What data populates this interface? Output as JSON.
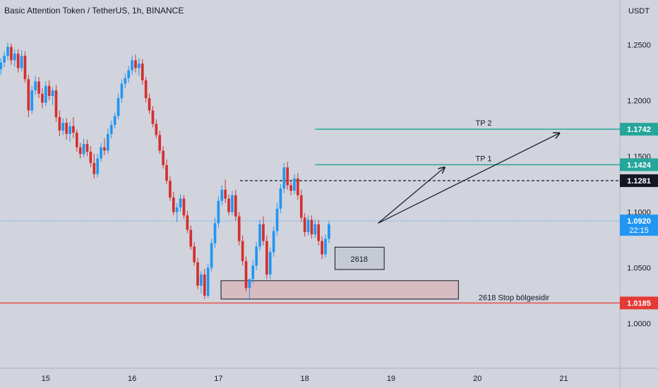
{
  "chart_data": {
    "type": "candlestick",
    "title": "Basic Attention Token / TetherUS, 1h, BINANCE",
    "currency": "USDT",
    "y_ticks": [
      1.0,
      1.05,
      1.1,
      1.15,
      1.2,
      1.25
    ],
    "y_tick_labels": [
      "1.0000",
      "1.0500",
      "1.1000",
      "1.1500",
      "1.2000",
      "1.2500"
    ],
    "ylim": [
      0.96,
      1.29
    ],
    "x_ticks": [
      15,
      16,
      17,
      18,
      19,
      20,
      21
    ],
    "x_tick_labels": [
      "15",
      "16",
      "17",
      "18",
      "19",
      "20",
      "21"
    ],
    "xlim": [
      14.47,
      21.65
    ],
    "colors": {
      "up": "#2196f3",
      "down": "#d32f2f",
      "tp": "#26a69a",
      "stop": "#e53935",
      "bg": "#d1d4dc",
      "zone": "#d7bcc2"
    },
    "candles": [
      [
        14.48,
        1.228,
        1.238,
        1.223,
        1.234
      ],
      [
        14.52,
        1.234,
        1.244,
        1.23,
        1.24
      ],
      [
        14.56,
        1.24,
        1.252,
        1.236,
        1.248
      ],
      [
        14.6,
        1.248,
        1.251,
        1.232,
        1.236
      ],
      [
        14.64,
        1.236,
        1.246,
        1.23,
        1.242
      ],
      [
        14.68,
        1.242,
        1.246,
        1.225,
        1.229
      ],
      [
        14.72,
        1.229,
        1.245,
        1.226,
        1.24
      ],
      [
        14.76,
        1.24,
        1.244,
        1.216,
        1.219
      ],
      [
        14.8,
        1.219,
        1.223,
        1.185,
        1.191
      ],
      [
        14.84,
        1.191,
        1.213,
        1.188,
        1.209
      ],
      [
        14.88,
        1.209,
        1.222,
        1.205,
        1.217
      ],
      [
        14.92,
        1.217,
        1.221,
        1.202,
        1.206
      ],
      [
        14.96,
        1.206,
        1.211,
        1.193,
        1.198
      ],
      [
        15.0,
        1.198,
        1.217,
        1.195,
        1.213
      ],
      [
        15.04,
        1.213,
        1.218,
        1.2,
        1.204
      ],
      [
        15.08,
        1.204,
        1.212,
        1.196,
        1.209
      ],
      [
        15.12,
        1.209,
        1.214,
        1.181,
        1.185
      ],
      [
        15.16,
        1.185,
        1.191,
        1.168,
        1.173
      ],
      [
        15.2,
        1.173,
        1.184,
        1.169,
        1.18
      ],
      [
        15.24,
        1.18,
        1.184,
        1.165,
        1.17
      ],
      [
        15.28,
        1.17,
        1.181,
        1.163,
        1.177
      ],
      [
        15.32,
        1.177,
        1.185,
        1.166,
        1.171
      ],
      [
        15.36,
        1.171,
        1.174,
        1.154,
        1.158
      ],
      [
        15.4,
        1.158,
        1.162,
        1.148,
        1.152
      ],
      [
        15.44,
        1.152,
        1.166,
        1.149,
        1.161
      ],
      [
        15.48,
        1.161,
        1.165,
        1.15,
        1.154
      ],
      [
        15.52,
        1.154,
        1.159,
        1.14,
        1.144
      ],
      [
        15.56,
        1.144,
        1.152,
        1.13,
        1.134
      ],
      [
        15.6,
        1.134,
        1.152,
        1.131,
        1.148
      ],
      [
        15.64,
        1.148,
        1.162,
        1.145,
        1.158
      ],
      [
        15.68,
        1.158,
        1.166,
        1.151,
        1.155
      ],
      [
        15.72,
        1.155,
        1.175,
        1.152,
        1.17
      ],
      [
        15.76,
        1.17,
        1.182,
        1.166,
        1.178
      ],
      [
        15.8,
        1.178,
        1.189,
        1.175,
        1.186
      ],
      [
        15.84,
        1.186,
        1.206,
        1.183,
        1.202
      ],
      [
        15.88,
        1.202,
        1.219,
        1.198,
        1.215
      ],
      [
        15.92,
        1.215,
        1.224,
        1.211,
        1.22
      ],
      [
        15.96,
        1.22,
        1.231,
        1.216,
        1.227
      ],
      [
        16.0,
        1.227,
        1.24,
        1.223,
        1.236
      ],
      [
        16.04,
        1.236,
        1.241,
        1.225,
        1.229
      ],
      [
        16.08,
        1.229,
        1.238,
        1.222,
        1.233
      ],
      [
        16.12,
        1.233,
        1.237,
        1.214,
        1.218
      ],
      [
        16.16,
        1.218,
        1.221,
        1.198,
        1.202
      ],
      [
        16.2,
        1.202,
        1.206,
        1.188,
        1.191
      ],
      [
        16.24,
        1.191,
        1.195,
        1.176,
        1.179
      ],
      [
        16.28,
        1.179,
        1.183,
        1.166,
        1.169
      ],
      [
        16.32,
        1.169,
        1.173,
        1.152,
        1.155
      ],
      [
        16.36,
        1.155,
        1.159,
        1.139,
        1.142
      ],
      [
        16.4,
        1.142,
        1.147,
        1.125,
        1.128
      ],
      [
        16.44,
        1.128,
        1.132,
        1.11,
        1.113
      ],
      [
        16.48,
        1.113,
        1.118,
        1.097,
        1.1
      ],
      [
        16.52,
        1.1,
        1.108,
        1.091,
        1.104
      ],
      [
        16.56,
        1.104,
        1.116,
        1.1,
        1.112
      ],
      [
        16.6,
        1.112,
        1.115,
        1.094,
        1.097
      ],
      [
        16.64,
        1.097,
        1.101,
        1.081,
        1.084
      ],
      [
        16.68,
        1.084,
        1.088,
        1.066,
        1.069
      ],
      [
        16.72,
        1.069,
        1.073,
        1.052,
        1.055
      ],
      [
        16.76,
        1.055,
        1.059,
        1.031,
        1.034
      ],
      [
        16.8,
        1.034,
        1.047,
        1.027,
        1.044
      ],
      [
        16.84,
        1.044,
        1.049,
        1.022,
        1.025
      ],
      [
        16.88,
        1.025,
        1.054,
        1.023,
        1.05
      ],
      [
        16.92,
        1.05,
        1.076,
        1.047,
        1.072
      ],
      [
        16.96,
        1.072,
        1.095,
        1.068,
        1.09
      ],
      [
        17.0,
        1.09,
        1.114,
        1.086,
        1.11
      ],
      [
        17.04,
        1.11,
        1.124,
        1.106,
        1.12
      ],
      [
        17.08,
        1.12,
        1.129,
        1.108,
        1.112
      ],
      [
        17.12,
        1.112,
        1.116,
        1.097,
        1.1
      ],
      [
        17.16,
        1.1,
        1.119,
        1.097,
        1.115
      ],
      [
        17.2,
        1.115,
        1.12,
        1.092,
        1.096
      ],
      [
        17.24,
        1.096,
        1.1,
        1.07,
        1.074
      ],
      [
        17.28,
        1.074,
        1.079,
        1.052,
        1.056
      ],
      [
        17.32,
        1.056,
        1.06,
        1.029,
        1.032
      ],
      [
        17.36,
        1.032,
        1.037,
        1.021,
        1.04
      ],
      [
        17.4,
        1.04,
        1.057,
        1.036,
        1.052
      ],
      [
        17.44,
        1.052,
        1.073,
        1.048,
        1.069
      ],
      [
        17.48,
        1.069,
        1.093,
        1.065,
        1.089
      ],
      [
        17.52,
        1.089,
        1.096,
        1.07,
        1.074
      ],
      [
        17.56,
        1.074,
        1.079,
        1.04,
        1.044
      ],
      [
        17.6,
        1.044,
        1.068,
        1.04,
        1.064
      ],
      [
        17.64,
        1.064,
        1.087,
        1.06,
        1.083
      ],
      [
        17.68,
        1.083,
        1.108,
        1.079,
        1.103
      ],
      [
        17.72,
        1.103,
        1.125,
        1.099,
        1.121
      ],
      [
        17.76,
        1.121,
        1.144,
        1.117,
        1.14
      ],
      [
        17.8,
        1.14,
        1.145,
        1.12,
        1.124
      ],
      [
        17.84,
        1.124,
        1.129,
        1.115,
        1.119
      ],
      [
        17.88,
        1.119,
        1.134,
        1.116,
        1.13
      ],
      [
        17.92,
        1.13,
        1.135,
        1.111,
        1.115
      ],
      [
        17.96,
        1.115,
        1.12,
        1.091,
        1.095
      ],
      [
        18.0,
        1.095,
        1.099,
        1.078,
        1.082
      ],
      [
        18.04,
        1.082,
        1.097,
        1.079,
        1.093
      ],
      [
        18.08,
        1.093,
        1.097,
        1.076,
        1.08
      ],
      [
        18.12,
        1.08,
        1.093,
        1.077,
        1.089
      ],
      [
        18.16,
        1.089,
        1.093,
        1.07,
        1.074
      ],
      [
        18.2,
        1.074,
        1.078,
        1.058,
        1.062
      ],
      [
        18.24,
        1.062,
        1.08,
        1.059,
        1.076
      ],
      [
        18.28,
        1.076,
        1.092,
        1.072,
        1.089
      ]
    ],
    "levels": [
      {
        "name": "TP 2",
        "value": 1.1742,
        "label": "TP 2",
        "value_label": "1.1742",
        "style": "tp",
        "x_start": 18.12,
        "x_end": 21.65
      },
      {
        "name": "TP 1",
        "value": 1.1424,
        "label": "TP 1",
        "value_label": "1.1424",
        "style": "tp",
        "x_start": 18.12,
        "x_end": 21.65
      },
      {
        "name": "resistance",
        "value": 1.1281,
        "label": "",
        "value_label": "1.1281",
        "style": "dashed",
        "x_start": 17.25,
        "x_end": 21.65
      },
      {
        "name": "current",
        "value": 1.092,
        "label": "",
        "value_label": "1.0920",
        "timer": "22:15",
        "style": "dotted",
        "x_start": 14.47,
        "x_end": 21.65
      },
      {
        "name": "stop",
        "value": 1.0185,
        "label": "2618 Stop bölgesidir",
        "value_label": "1.0185",
        "style": "stop",
        "x_start": 14.47,
        "x_end": 21.65
      }
    ],
    "zones": [
      {
        "name": "entry-box",
        "label": "2618",
        "x0": 18.35,
        "x1": 18.92,
        "y0": 1.0485,
        "y1": 1.0685,
        "fill": "#c5cad3"
      },
      {
        "name": "support-zone",
        "label": "",
        "x0": 17.03,
        "x1": 19.78,
        "y0": 1.022,
        "y1": 1.0385,
        "fill": "#d7bcc2"
      }
    ],
    "arrows": [
      {
        "name": "arrow-to-tp1",
        "from": [
          18.85,
          1.09
        ],
        "to": [
          19.62,
          1.14
        ]
      },
      {
        "name": "arrow-to-tp2",
        "from": [
          18.85,
          1.09
        ],
        "to": [
          20.95,
          1.1707
        ]
      }
    ]
  }
}
